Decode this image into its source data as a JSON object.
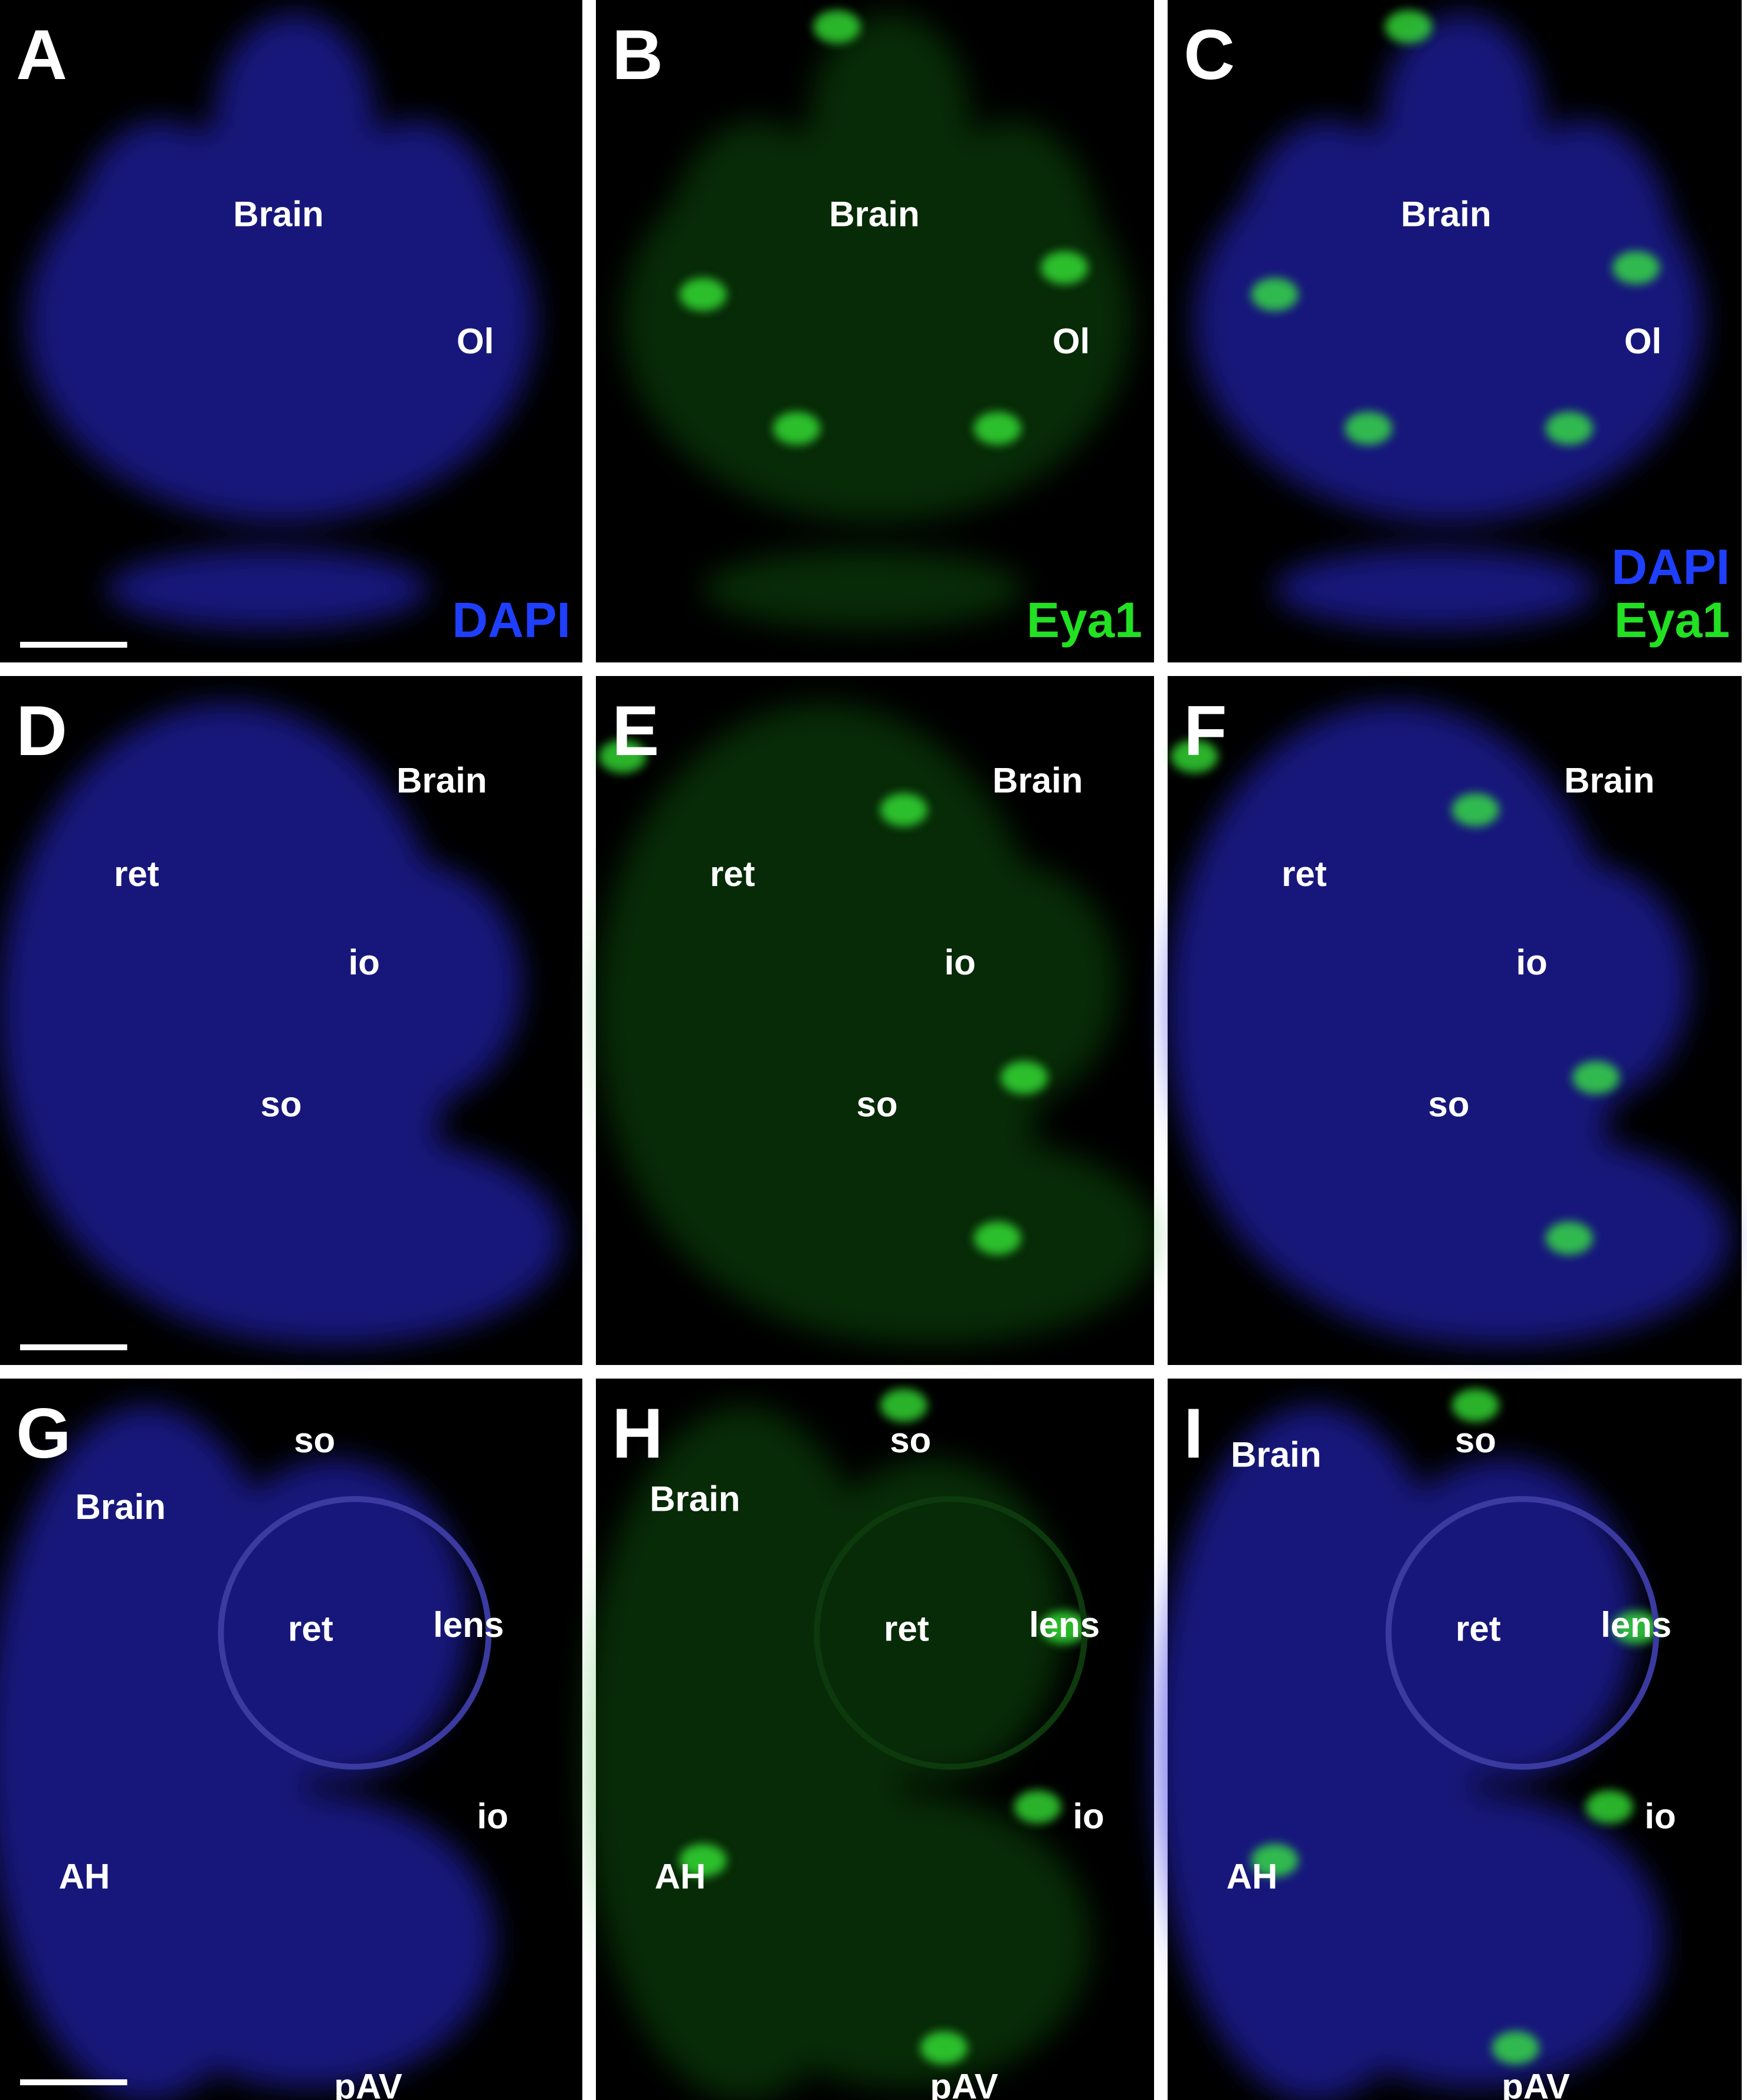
{
  "panels": [
    {
      "letter": "A",
      "labels": [
        "Brain",
        "Ol"
      ],
      "stain_labels": [
        "DAPI"
      ]
    },
    {
      "letter": "B",
      "labels": [
        "Brain",
        "Ol"
      ],
      "stain_labels": [
        "Eya1"
      ]
    },
    {
      "letter": "C",
      "labels": [
        "Brain",
        "Ol"
      ],
      "stain_labels": [
        "DAPI",
        "Eya1"
      ]
    },
    {
      "letter": "D",
      "labels": [
        "so",
        "Brain",
        "ret",
        "io"
      ],
      "stain_labels": []
    },
    {
      "letter": "E",
      "labels": [
        "so",
        "Brain",
        "ret",
        "io"
      ],
      "stain_labels": []
    },
    {
      "letter": "F",
      "labels": [
        "so",
        "Brain",
        "ret",
        "io"
      ],
      "stain_labels": []
    },
    {
      "letter": "G",
      "labels": [
        "so",
        "Brain",
        "ret",
        "lens",
        "io",
        "AH",
        "pAV"
      ],
      "stain_labels": []
    },
    {
      "letter": "H",
      "labels": [
        "so",
        "Brain",
        "ret",
        "lens",
        "io",
        "AH",
        "pAV"
      ],
      "stain_labels": []
    },
    {
      "letter": "I",
      "labels": [
        "so",
        "Brain",
        "ret",
        "lens",
        "io",
        "AH",
        "pAV"
      ],
      "stain_labels": []
    }
  ]
}
